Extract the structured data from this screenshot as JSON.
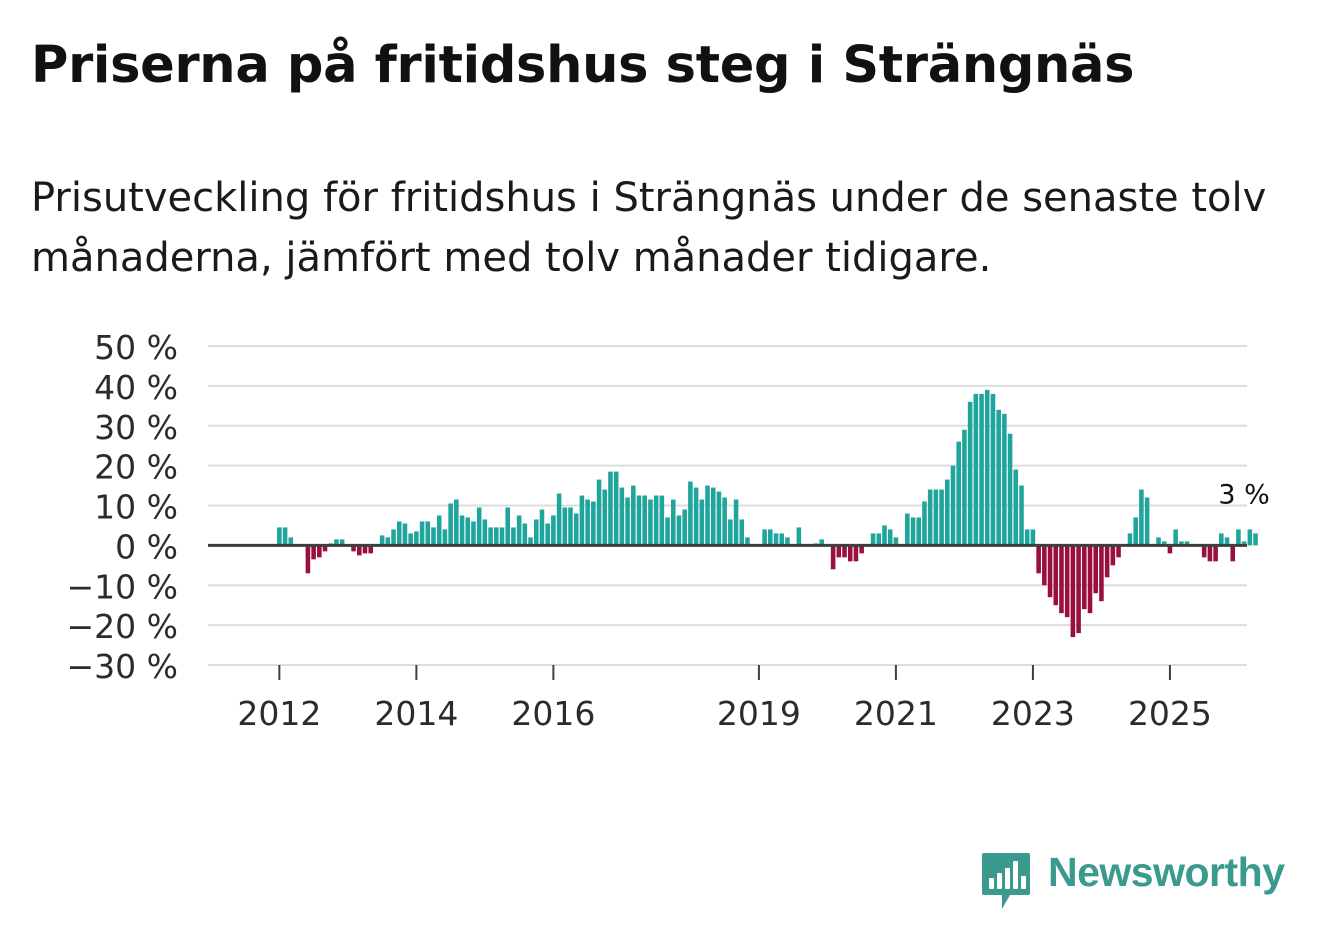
{
  "title": "Priserna på fritidshus steg i Strängnäs",
  "subtitle": "Prisutveckling för fritidshus i Strängnäs under de senaste tolv månaderna, jämfört med tolv månader tidigare.",
  "brand": {
    "name": "Newsworthy",
    "logo_icon": "bar-chart-icon"
  },
  "colors": {
    "positive": "#1fa59c",
    "negative": "#99103f",
    "zero_line": "#3a3f44",
    "grid": "#dddddd",
    "brand": "#3b9a8e"
  },
  "chart_data": {
    "type": "bar",
    "title": "Priserna på fritidshus steg i Strängnäs",
    "subtitle": "Prisutveckling för fritidshus i Strängnäs under de senaste tolv månaderna, jämfört med tolv månader tidigare.",
    "xlabel": "",
    "ylabel": "",
    "unit": "%",
    "ylim": [
      -30,
      50
    ],
    "yticks": [
      50,
      40,
      30,
      20,
      10,
      0,
      -10,
      -20,
      -30
    ],
    "ytick_labels": [
      "50 %",
      "40 %",
      "30 %",
      "20 %",
      "10 %",
      "0 %",
      "−10 %",
      "−20 %",
      "−30 %"
    ],
    "x_start": "2011-01",
    "x_end": "2026-03",
    "xtick_labels": [
      {
        "label": "2012",
        "month": "2012-01"
      },
      {
        "label": "2014",
        "month": "2014-01"
      },
      {
        "label": "2016",
        "month": "2016-01"
      },
      {
        "label": "2019",
        "month": "2019-01"
      },
      {
        "label": "2021",
        "month": "2021-01"
      },
      {
        "label": "2023",
        "month": "2023-01"
      },
      {
        "label": "2025",
        "month": "2025-01"
      }
    ],
    "series": [
      {
        "name": "Prisutveckling",
        "start_month": "2012-01",
        "values": [
          4.5,
          4.5,
          2.0,
          0,
          0,
          -7.0,
          -3.5,
          -3.0,
          -1.5,
          0.5,
          1.5,
          1.5,
          0,
          -1.5,
          -2.5,
          -2.0,
          -2.0,
          0,
          2.5,
          2.0,
          4.0,
          6.0,
          5.5,
          3.0,
          3.5,
          6.0,
          6.0,
          4.5,
          7.5,
          4.0,
          10.5,
          11.5,
          7.5,
          7.0,
          6.0,
          9.5,
          6.5,
          4.5,
          4.5,
          4.5,
          9.5,
          4.5,
          7.5,
          5.5,
          2.0,
          6.5,
          9.0,
          5.5,
          7.5,
          13.0,
          9.5,
          9.5,
          8.0,
          12.5,
          11.5,
          11.0,
          16.5,
          14.0,
          18.5,
          18.5,
          14.5,
          12.0,
          15.0,
          12.5,
          12.5,
          11.5,
          12.5,
          12.5,
          7.0,
          11.5,
          7.5,
          9.0,
          16.0,
          14.5,
          11.5,
          15.0,
          14.5,
          13.5,
          12.0,
          6.5,
          11.5,
          6.5,
          2.0,
          0,
          0,
          4.0,
          4.0,
          3.0,
          3.0,
          2.0,
          0,
          4.5,
          0,
          0,
          0.5,
          1.5,
          0,
          -6.0,
          -3.0,
          -3.0,
          -4.0,
          -4.0,
          -2.0,
          0,
          3.0,
          3.0,
          5.0,
          4.0,
          2.0,
          0,
          8.0,
          7.0,
          7.0,
          11.0,
          14.0,
          14.0,
          14.0,
          16.5,
          20.0,
          26.0,
          29.0,
          36.0,
          38.0,
          38.0,
          39.0,
          38.0,
          34.0,
          33.0,
          28.0,
          19.0,
          15.0,
          4.0,
          4.0,
          -7.0,
          -10.0,
          -13.0,
          -15.0,
          -17.0,
          -18.0,
          -23.0,
          -22.0,
          -16.0,
          -17.0,
          -12.0,
          -14.0,
          -8.0,
          -5.0,
          -3.0,
          0,
          3.0,
          7.0,
          14.0,
          12.0,
          0,
          2.0,
          1.0,
          -2.0,
          4.0,
          1.0,
          1.0,
          0,
          0,
          -3.0,
          -4.0,
          -4.0,
          3.0,
          2.0,
          -4.0,
          4.0,
          1.0,
          4.0,
          3.0
        ]
      }
    ],
    "annotation": {
      "text": "3 %",
      "month": "2026-02",
      "value": 3
    }
  }
}
